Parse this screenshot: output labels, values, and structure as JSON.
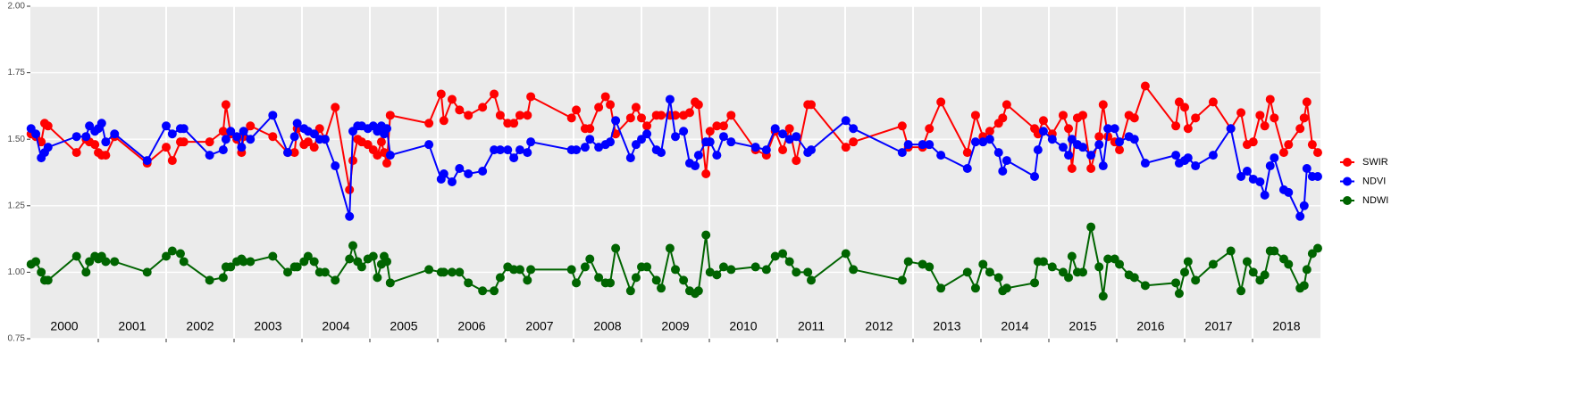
{
  "chart_data": {
    "type": "line",
    "x": [
      2000.01,
      2000.08,
      2000.16,
      2000.21,
      2000.26,
      2000.68,
      2000.82,
      2000.87,
      2000.95,
      2001.0,
      2001.05,
      2001.11,
      2001.24,
      2001.72,
      2002.0,
      2002.09,
      2002.21,
      2002.26,
      2002.64,
      2002.84,
      2002.88,
      2002.95,
      2003.04,
      2003.11,
      2003.14,
      2003.24,
      2003.57,
      2003.79,
      2003.89,
      2003.93,
      2004.03,
      2004.09,
      2004.18,
      2004.26,
      2004.34,
      2004.49,
      2004.7,
      2004.75,
      2004.82,
      2004.88,
      2004.97,
      2005.05,
      2005.11,
      2005.17,
      2005.21,
      2005.25,
      2005.3,
      2005.87,
      2006.05,
      2006.09,
      2006.21,
      2006.32,
      2006.45,
      2006.66,
      2006.83,
      2006.92,
      2007.03,
      2007.12,
      2007.21,
      2007.32,
      2007.37,
      2007.97,
      2008.04,
      2008.17,
      2008.24,
      2008.37,
      2008.47,
      2008.54,
      2008.62,
      2008.84,
      2008.92,
      2009.0,
      2009.08,
      2009.22,
      2009.29,
      2009.42,
      2009.5,
      2009.62,
      2009.71,
      2009.79,
      2009.84,
      2009.95,
      2010.01,
      2010.11,
      2010.21,
      2010.32,
      2010.68,
      2010.84,
      2010.97,
      2011.08,
      2011.18,
      2011.28,
      2011.45,
      2011.5,
      2012.01,
      2012.12,
      2012.84,
      2012.93,
      2013.14,
      2013.24,
      2013.41,
      2013.8,
      2013.92,
      2014.03,
      2014.13,
      2014.26,
      2014.32,
      2014.38,
      2014.79,
      2014.84,
      2014.92,
      2015.05,
      2015.21,
      2015.29,
      2015.34,
      2015.42,
      2015.5,
      2015.62,
      2015.74,
      2015.8,
      2015.87,
      2015.97,
      2016.04,
      2016.18,
      2016.26,
      2016.42,
      2016.87,
      2016.92,
      2017.0,
      2017.05,
      2017.16,
      2017.42,
      2017.68,
      2017.83,
      2017.92,
      2018.01,
      2018.11,
      2018.18,
      2018.26,
      2018.32,
      2018.46,
      2018.53,
      2018.7,
      2018.76,
      2018.8,
      2018.88,
      2018.96
    ],
    "series": [
      {
        "name": "SWIR",
        "color": "#ff0000",
        "values": [
          1.52,
          1.51,
          1.49,
          1.56,
          1.55,
          1.45,
          1.5,
          1.49,
          1.48,
          1.45,
          1.44,
          1.44,
          1.51,
          1.41,
          1.47,
          1.42,
          1.49,
          1.49,
          1.49,
          1.53,
          1.63,
          1.52,
          1.5,
          1.45,
          1.51,
          1.55,
          1.51,
          1.45,
          1.45,
          1.54,
          1.48,
          1.49,
          1.47,
          1.54,
          1.5,
          1.62,
          1.31,
          1.42,
          1.5,
          1.49,
          1.48,
          1.46,
          1.44,
          1.49,
          1.45,
          1.41,
          1.59,
          1.56,
          1.67,
          1.57,
          1.65,
          1.61,
          1.59,
          1.62,
          1.67,
          1.59,
          1.56,
          1.56,
          1.59,
          1.59,
          1.66,
          1.58,
          1.61,
          1.54,
          1.54,
          1.62,
          1.66,
          1.63,
          1.52,
          1.58,
          1.62,
          1.58,
          1.55,
          1.59,
          1.59,
          1.59,
          1.59,
          1.59,
          1.6,
          1.64,
          1.63,
          1.37,
          1.53,
          1.55,
          1.55,
          1.59,
          1.46,
          1.44,
          1.53,
          1.46,
          1.54,
          1.42,
          1.63,
          1.63,
          1.47,
          1.49,
          1.55,
          1.47,
          1.47,
          1.54,
          1.64,
          1.45,
          1.59,
          1.51,
          1.53,
          1.56,
          1.58,
          1.63,
          1.54,
          1.52,
          1.57,
          1.52,
          1.59,
          1.54,
          1.39,
          1.58,
          1.59,
          1.39,
          1.51,
          1.63,
          1.51,
          1.49,
          1.46,
          1.59,
          1.58,
          1.7,
          1.55,
          1.64,
          1.62,
          1.54,
          1.58,
          1.64,
          1.54,
          1.6,
          1.48,
          1.49,
          1.59,
          1.55,
          1.65,
          1.58,
          1.45,
          1.48,
          1.54,
          1.58,
          1.64,
          1.48,
          1.45
        ]
      },
      {
        "name": "NDVI",
        "color": "#0000ff",
        "values": [
          1.54,
          1.52,
          1.43,
          1.45,
          1.47,
          1.51,
          1.51,
          1.55,
          1.53,
          1.54,
          1.56,
          1.49,
          1.52,
          1.42,
          1.55,
          1.52,
          1.54,
          1.54,
          1.44,
          1.46,
          1.5,
          1.53,
          1.51,
          1.47,
          1.53,
          1.5,
          1.59,
          1.45,
          1.51,
          1.56,
          1.54,
          1.53,
          1.52,
          1.5,
          1.5,
          1.4,
          1.21,
          1.53,
          1.55,
          1.55,
          1.54,
          1.55,
          1.53,
          1.55,
          1.52,
          1.54,
          1.44,
          1.48,
          1.35,
          1.37,
          1.34,
          1.39,
          1.37,
          1.38,
          1.46,
          1.46,
          1.46,
          1.43,
          1.46,
          1.45,
          1.49,
          1.46,
          1.46,
          1.47,
          1.5,
          1.47,
          1.48,
          1.49,
          1.57,
          1.43,
          1.48,
          1.5,
          1.52,
          1.46,
          1.45,
          1.65,
          1.51,
          1.53,
          1.41,
          1.4,
          1.44,
          1.49,
          1.49,
          1.44,
          1.51,
          1.49,
          1.47,
          1.46,
          1.54,
          1.52,
          1.5,
          1.51,
          1.45,
          1.46,
          1.57,
          1.54,
          1.45,
          1.48,
          1.48,
          1.48,
          1.44,
          1.39,
          1.49,
          1.49,
          1.5,
          1.45,
          1.38,
          1.42,
          1.36,
          1.46,
          1.53,
          1.5,
          1.47,
          1.44,
          1.5,
          1.48,
          1.47,
          1.44,
          1.48,
          1.4,
          1.54,
          1.54,
          1.49,
          1.51,
          1.5,
          1.41,
          1.44,
          1.41,
          1.42,
          1.43,
          1.4,
          1.44,
          1.54,
          1.36,
          1.38,
          1.35,
          1.34,
          1.29,
          1.4,
          1.43,
          1.31,
          1.3,
          1.21,
          1.25,
          1.39,
          1.36,
          1.36
        ]
      },
      {
        "name": "NDWI",
        "color": "#006400",
        "values": [
          1.03,
          1.04,
          1.0,
          0.97,
          0.97,
          1.06,
          1.0,
          1.04,
          1.06,
          1.05,
          1.06,
          1.04,
          1.04,
          1.0,
          1.06,
          1.08,
          1.07,
          1.04,
          0.97,
          0.98,
          1.02,
          1.02,
          1.04,
          1.05,
          1.04,
          1.04,
          1.06,
          1.0,
          1.02,
          1.02,
          1.04,
          1.06,
          1.04,
          1.0,
          1.0,
          0.97,
          1.05,
          1.1,
          1.04,
          1.02,
          1.05,
          1.06,
          0.98,
          1.03,
          1.06,
          1.04,
          0.96,
          1.01,
          1.0,
          1.0,
          1.0,
          1.0,
          0.96,
          0.93,
          0.93,
          0.98,
          1.02,
          1.01,
          1.01,
          0.97,
          1.01,
          1.01,
          0.96,
          1.02,
          1.05,
          0.98,
          0.96,
          0.96,
          1.09,
          0.93,
          0.98,
          1.02,
          1.02,
          0.97,
          0.94,
          1.09,
          1.01,
          0.97,
          0.93,
          0.92,
          0.93,
          1.14,
          1.0,
          0.99,
          1.02,
          1.01,
          1.02,
          1.01,
          1.06,
          1.07,
          1.04,
          1.0,
          1.0,
          0.97,
          1.07,
          1.01,
          0.97,
          1.04,
          1.03,
          1.02,
          0.94,
          1.0,
          0.94,
          1.03,
          1.0,
          0.98,
          0.93,
          0.94,
          0.96,
          1.04,
          1.04,
          1.02,
          1.0,
          0.98,
          1.06,
          1.0,
          1.0,
          1.17,
          1.02,
          0.91,
          1.05,
          1.05,
          1.03,
          0.99,
          0.98,
          0.95,
          0.96,
          0.92,
          1.0,
          1.04,
          0.97,
          1.03,
          1.08,
          0.93,
          1.04,
          1.0,
          0.97,
          0.99,
          1.08,
          1.08,
          1.05,
          1.03,
          0.94,
          0.95,
          1.01,
          1.07,
          1.09
        ]
      }
    ],
    "xlim": [
      2000,
      2019
    ],
    "xticks": [
      {
        "value": 2000.5,
        "label": "2000"
      },
      {
        "value": 2001.5,
        "label": "2001"
      },
      {
        "value": 2002.5,
        "label": "2002"
      },
      {
        "value": 2003.5,
        "label": "2003"
      },
      {
        "value": 2004.5,
        "label": "2004"
      },
      {
        "value": 2005.5,
        "label": "2005"
      },
      {
        "value": 2006.5,
        "label": "2006"
      },
      {
        "value": 2007.5,
        "label": "2007"
      },
      {
        "value": 2008.5,
        "label": "2008"
      },
      {
        "value": 2009.5,
        "label": "2009"
      },
      {
        "value": 2010.5,
        "label": "2010"
      },
      {
        "value": 2011.5,
        "label": "2011"
      },
      {
        "value": 2012.5,
        "label": "2012"
      },
      {
        "value": 2013.5,
        "label": "2013"
      },
      {
        "value": 2014.5,
        "label": "2014"
      },
      {
        "value": 2015.5,
        "label": "2015"
      },
      {
        "value": 2016.5,
        "label": "2016"
      },
      {
        "value": 2017.5,
        "label": "2017"
      },
      {
        "value": 2018.5,
        "label": "2018"
      }
    ],
    "xgrid": [
      2001,
      2002,
      2003,
      2004,
      2005,
      2006,
      2007,
      2008,
      2009,
      2010,
      2011,
      2012,
      2013,
      2014,
      2015,
      2016,
      2017,
      2018
    ],
    "ylim": [
      0.75,
      2.0
    ],
    "yticks": [
      0.75,
      {
        "value": 1.0,
        "label": "1.00"
      },
      1.25,
      {
        "value": 1.5,
        "label": "1.50"
      },
      1.75,
      {
        "value": 2.0,
        "label": "2.00"
      }
    ],
    "grid": true,
    "legend": "right"
  }
}
